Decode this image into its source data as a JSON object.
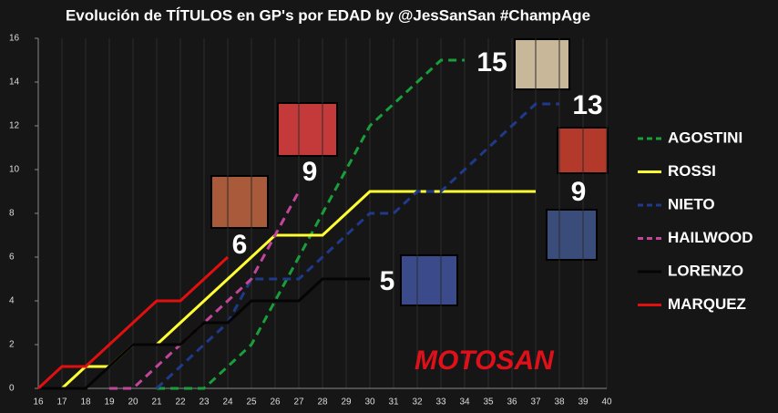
{
  "chart_data": {
    "type": "line",
    "title": "Evolución de TÍTULOS en GP's por EDAD by @JesSanSan #ChampAge",
    "logo": "MOTOSAN",
    "x": [
      16,
      17,
      18,
      19,
      20,
      21,
      22,
      23,
      24,
      25,
      26,
      27,
      28,
      29,
      30,
      31,
      32,
      33,
      34,
      35,
      36,
      37,
      38,
      39,
      40
    ],
    "xlim": [
      16,
      40
    ],
    "xticks": [
      16,
      17,
      18,
      19,
      20,
      21,
      22,
      23,
      24,
      25,
      26,
      27,
      28,
      29,
      30,
      31,
      32,
      33,
      34,
      35,
      36,
      37,
      38,
      39,
      40
    ],
    "ylim": [
      0,
      16
    ],
    "yticks": [
      0,
      2,
      4,
      6,
      8,
      10,
      12,
      14,
      16
    ],
    "grid": true,
    "legend": "right",
    "series": [
      {
        "name": "AGOSTINI",
        "color": "#1a9e3c",
        "style": "dashed",
        "end_label": "15",
        "values": [
          null,
          null,
          null,
          null,
          null,
          0,
          0,
          0,
          1,
          2,
          4,
          6,
          8,
          10,
          12,
          13,
          14,
          15,
          15,
          null,
          null,
          null,
          null,
          null,
          null
        ]
      },
      {
        "name": "ROSSI",
        "color": "#ffff33",
        "style": "solid",
        "end_label": "9",
        "values": [
          null,
          0,
          1,
          1,
          2,
          2,
          3,
          4,
          5,
          6,
          7,
          7,
          7,
          8,
          9,
          9,
          9,
          9,
          9,
          9,
          9,
          9,
          null,
          null,
          null
        ]
      },
      {
        "name": "NIETO",
        "color": "#1f3a8a",
        "style": "dashed",
        "end_label": "13",
        "values": [
          null,
          null,
          null,
          null,
          null,
          0,
          1,
          2,
          3,
          5,
          5,
          5,
          6,
          7,
          8,
          8,
          9,
          9,
          10,
          11,
          12,
          13,
          13,
          null,
          null
        ]
      },
      {
        "name": "HAILWOOD",
        "color": "#c2469b",
        "style": "dashed",
        "end_label": "9",
        "values": [
          null,
          null,
          null,
          0,
          0,
          1,
          2,
          3,
          4,
          5,
          7,
          9,
          null,
          null,
          null,
          null,
          null,
          null,
          null,
          null,
          null,
          null,
          null,
          null,
          null
        ]
      },
      {
        "name": "LORENZO",
        "color": "#050505",
        "style": "solid",
        "end_label": "5",
        "values": [
          0,
          0,
          0,
          1,
          2,
          2,
          2,
          3,
          3,
          4,
          4,
          4,
          5,
          5,
          5,
          null,
          null,
          null,
          null,
          null,
          null,
          null,
          null,
          null,
          null
        ]
      },
      {
        "name": "MARQUEZ",
        "color": "#e01010",
        "style": "solid",
        "end_label": "6",
        "values": [
          0,
          1,
          1,
          2,
          3,
          4,
          4,
          5,
          6,
          null,
          null,
          null,
          null,
          null,
          null,
          null,
          null,
          null,
          null,
          null,
          null,
          null,
          null,
          null,
          null
        ]
      }
    ]
  }
}
